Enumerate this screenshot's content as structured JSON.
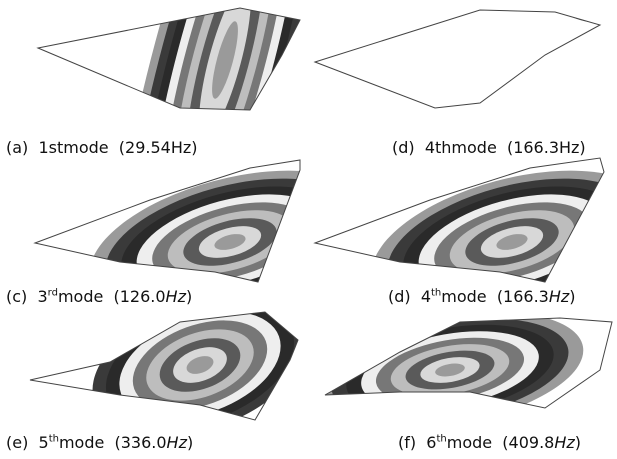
{
  "panels": [
    {
      "caption": [
        "(a)  1stmode  (29.54Hz)"
      ]
    },
    {
      "caption": [
        "(d)  4thmode  (166.3Hz)"
      ]
    },
    {
      "caption": [
        "(c)  3",
        "rd",
        "mode  (126.0",
        "Hz",
        ")"
      ]
    },
    {
      "caption": [
        "(d)  4",
        "th",
        "mode  (166.3",
        "Hz",
        ")"
      ]
    },
    {
      "caption": [
        "(e)  5",
        "th",
        "mode  (336.0",
        "Hz",
        ")"
      ]
    },
    {
      "caption": [
        "(f)  6",
        "th",
        "mode  (409.8",
        "Hz",
        ")"
      ]
    }
  ]
}
